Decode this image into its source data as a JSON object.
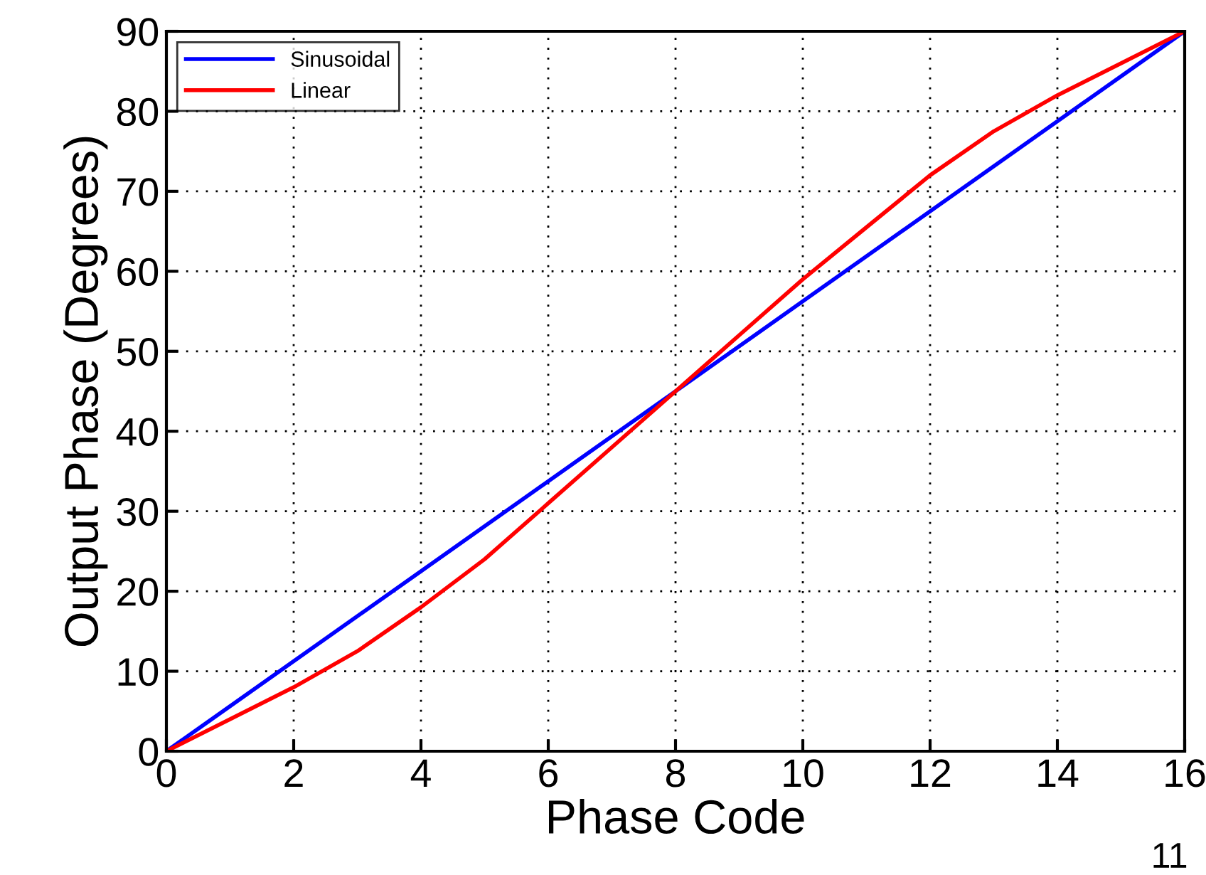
{
  "chart_data": {
    "type": "line",
    "xlabel": "Phase Code",
    "ylabel": "Output Phase (Degrees)",
    "xlim": [
      0,
      16
    ],
    "ylim": [
      0,
      90
    ],
    "xticks": [
      0,
      2,
      4,
      6,
      8,
      10,
      12,
      14,
      16
    ],
    "yticks": [
      0,
      10,
      20,
      30,
      40,
      50,
      60,
      70,
      80,
      90
    ],
    "grid": true,
    "legend": "top left",
    "marker": "none",
    "line_style": "solid",
    "series": [
      {
        "name": "Sinusoidal",
        "color": "#0000ff",
        "x": [
          0,
          16
        ],
        "values": [
          0,
          90
        ]
      },
      {
        "name": "Linear",
        "color": "#ff0000",
        "x": [
          0,
          1,
          2,
          3,
          4,
          5,
          6,
          7,
          8,
          9,
          10,
          11,
          12,
          13,
          14,
          15,
          16
        ],
        "values": [
          0,
          4,
          8,
          12.5,
          18,
          24,
          31,
          38,
          45,
          52,
          59,
          65.5,
          72,
          77.5,
          82,
          86,
          90
        ]
      }
    ],
    "annotations": [
      {
        "text": "11"
      }
    ]
  }
}
